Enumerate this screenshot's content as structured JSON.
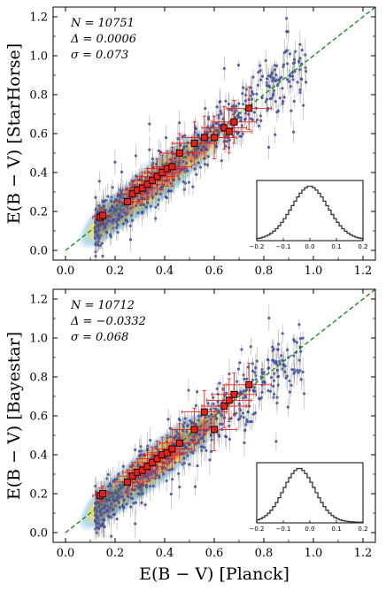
{
  "colors": {
    "scatter": "#3b4a9e",
    "errorbar": "#8a8a8a",
    "density_core": "#d8433a",
    "density_mid": "#f2d64b",
    "density_outer": "#6fb6d8",
    "binned_marker": "#e82018",
    "binned_error": "#e82018",
    "one_to_one_line": "#1f8a1f",
    "histogram": "#333333"
  },
  "chart_data": [
    {
      "type": "scatter",
      "ylabel": "E(B − V) [StarHorse]",
      "xlabel": "",
      "xlim": [
        -0.05,
        1.25
      ],
      "ylim": [
        -0.05,
        1.25
      ],
      "x_ticks": [
        "0.0",
        "0.2",
        "0.4",
        "0.6",
        "0.8",
        "1.0",
        "1.2"
      ],
      "y_ticks": [
        "0.0",
        "0.2",
        "0.4",
        "0.6",
        "0.8",
        "1.0",
        "1.2"
      ],
      "stats": {
        "N": "N = 10751",
        "Delta": "Δ = 0.0006",
        "sigma": "σ = 0.073"
      },
      "one_to_one": true,
      "binned": {
        "x": [
          0.14,
          0.15,
          0.25,
          0.27,
          0.29,
          0.31,
          0.33,
          0.35,
          0.37,
          0.39,
          0.41,
          0.43,
          0.46,
          0.52,
          0.56,
          0.6,
          0.64,
          0.66,
          0.68,
          0.74
        ],
        "y": [
          0.17,
          0.18,
          0.25,
          0.29,
          0.31,
          0.32,
          0.34,
          0.36,
          0.38,
          0.4,
          0.42,
          0.43,
          0.5,
          0.55,
          0.58,
          0.58,
          0.63,
          0.61,
          0.66,
          0.73
        ],
        "xerr": [
          0.03,
          0.03,
          0.05,
          0.06,
          0.06,
          0.06,
          0.07,
          0.07,
          0.07,
          0.07,
          0.08,
          0.08,
          0.08,
          0.09,
          0.09,
          0.09,
          0.09,
          0.09,
          0.09,
          0.09
        ],
        "yerr": [
          0.04,
          0.04,
          0.06,
          0.07,
          0.07,
          0.08,
          0.08,
          0.08,
          0.09,
          0.09,
          0.09,
          0.1,
          0.1,
          0.11,
          0.11,
          0.11,
          0.11,
          0.11,
          0.11,
          0.11
        ]
      },
      "inset": {
        "type": "histogram",
        "x_ticks": [
          "−0.2",
          "−0.1",
          "0.0",
          "0.1",
          "0.2"
        ],
        "xlim": [
          -0.2,
          0.2
        ],
        "center": 0.0,
        "width": 0.07
      }
    },
    {
      "type": "scatter",
      "ylabel": "E(B − V) [Bayestar]",
      "xlabel": "E(B − V) [Planck]",
      "xlim": [
        -0.05,
        1.25
      ],
      "ylim": [
        -0.05,
        1.25
      ],
      "x_ticks": [
        "0.0",
        "0.2",
        "0.4",
        "0.6",
        "0.8",
        "1.0",
        "1.2"
      ],
      "y_ticks": [
        "0.0",
        "0.2",
        "0.4",
        "0.6",
        "0.8",
        "1.0",
        "1.2"
      ],
      "stats": {
        "N": "N = 10712",
        "Delta": "Δ = −0.0332",
        "sigma": "σ = 0.068"
      },
      "one_to_one": true,
      "binned": {
        "x": [
          0.14,
          0.15,
          0.25,
          0.27,
          0.29,
          0.31,
          0.33,
          0.35,
          0.37,
          0.39,
          0.41,
          0.43,
          0.46,
          0.52,
          0.56,
          0.6,
          0.64,
          0.66,
          0.68,
          0.74
        ],
        "y": [
          0.19,
          0.2,
          0.26,
          0.29,
          0.31,
          0.32,
          0.34,
          0.36,
          0.38,
          0.4,
          0.41,
          0.43,
          0.46,
          0.53,
          0.62,
          0.53,
          0.65,
          0.68,
          0.71,
          0.76
        ],
        "xerr": [
          0.03,
          0.03,
          0.05,
          0.06,
          0.06,
          0.06,
          0.07,
          0.07,
          0.07,
          0.07,
          0.08,
          0.08,
          0.08,
          0.09,
          0.09,
          0.09,
          0.09,
          0.09,
          0.09,
          0.09
        ],
        "yerr": [
          0.04,
          0.04,
          0.06,
          0.07,
          0.07,
          0.08,
          0.08,
          0.08,
          0.09,
          0.09,
          0.09,
          0.1,
          0.1,
          0.11,
          0.11,
          0.11,
          0.11,
          0.11,
          0.11,
          0.11
        ]
      },
      "inset": {
        "type": "histogram",
        "x_ticks": [
          "−0.2",
          "−0.1",
          "0.0",
          "0.1",
          "0.2"
        ],
        "xlim": [
          -0.2,
          0.2
        ],
        "center": -0.04,
        "width": 0.06
      }
    }
  ]
}
